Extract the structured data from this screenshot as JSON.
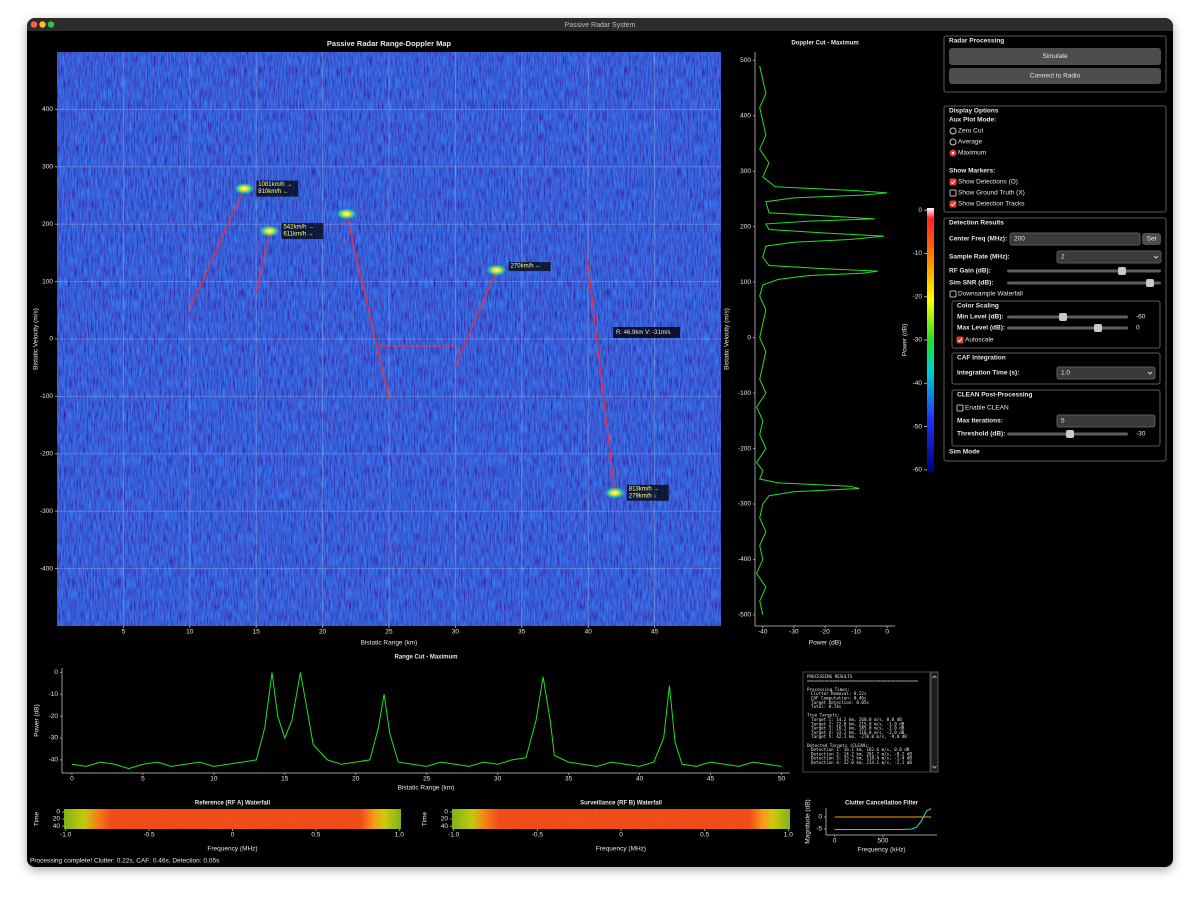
{
  "window": {
    "title": "Passive Radar System"
  },
  "chart_data": [
    {
      "type": "heatmap",
      "title": "Passive Radar Range-Doppler Map",
      "xlabel": "Bistatic Range (km)",
      "ylabel": "Bistatic Velocity (m/s)",
      "xlim": [
        0,
        50
      ],
      "ylim": [
        -500,
        500
      ],
      "xticks": [
        5,
        10,
        15,
        20,
        25,
        30,
        35,
        40,
        45
      ],
      "yticks": [
        -400,
        -300,
        -200,
        -100,
        0,
        100,
        200,
        300,
        400
      ],
      "grid": true,
      "colormap": "jet",
      "targets": {
        "range": [
          14.1,
          16.0,
          21.8,
          33.1,
          42.0
        ],
        "velocity": [
          262,
          188,
          218,
          120,
          -268
        ],
        "labels": [
          [
            "1081km/h →",
            "810km/h ←"
          ],
          [
            "542km/h →",
            "611km/h →"
          ],
          null,
          [
            "270km/h ←"
          ],
          [
            "813km/h →",
            "279km/h ↓"
          ]
        ]
      },
      "tracks": {
        "color": "#ff2a2a",
        "lines": [
          {
            "range": [
              10.0,
              14.1
            ],
            "velocity": [
              52,
              262
            ]
          },
          {
            "range": [
              15.0,
              16.0
            ],
            "velocity": [
              80,
              188
            ]
          },
          {
            "range": [
              21.8,
              25.0
            ],
            "velocity": [
              218,
              -104
            ]
          },
          {
            "range": [
              30.0,
              33.1
            ],
            "velocity": [
              -48,
              120
            ]
          },
          {
            "range": [
              39.9,
              42.0
            ],
            "velocity": [
              148,
              -268
            ]
          },
          {
            "range": [
              24.1,
              30.3
            ],
            "velocity": [
              -12,
              -12
            ]
          }
        ]
      },
      "cursor_readout": "R: 46.9km  V: -31m/s",
      "colorbar": {
        "label": "Power (dB)",
        "lim": [
          -60.5,
          0.5
        ],
        "ticks": [
          0,
          -10,
          -20,
          -30,
          -40,
          -50,
          -60
        ]
      }
    },
    {
      "type": "line",
      "orientation": "horizontal",
      "title": "Doppler Cut - Maximum",
      "xlabel": "Power (dB)",
      "ylabel": "Bistatic Velocity (m/s)",
      "xlim": [
        -42.5,
        2.5
      ],
      "ylim": [
        -520,
        515
      ],
      "xticks": [
        -40,
        -30,
        -20,
        -10,
        0
      ],
      "yticks": [
        -500,
        -400,
        -300,
        -200,
        -100,
        0,
        100,
        200,
        300,
        400,
        500
      ],
      "color": "#22e022",
      "y": [
        -500,
        -475,
        -450,
        -425,
        -400,
        -375,
        -350,
        -325,
        -300,
        -285,
        -278,
        -272,
        -268,
        -262,
        -255,
        -240,
        -225,
        -200,
        -175,
        -150,
        -125,
        -100,
        -75,
        -50,
        -25,
        0,
        25,
        50,
        75,
        95,
        105,
        112,
        116,
        120,
        124,
        130,
        145,
        165,
        172,
        177,
        183,
        188,
        195,
        205,
        210,
        214,
        218,
        225,
        245,
        252,
        257,
        261,
        265,
        272,
        290,
        315,
        340,
        365,
        390,
        415,
        440,
        465,
        490
      ],
      "values": [
        -40,
        -41,
        -39,
        -42,
        -40,
        -41,
        -39,
        -41,
        -40,
        -38,
        -30,
        -9,
        -12,
        -35,
        -41,
        -40,
        -42,
        -39,
        -41,
        -40,
        -42,
        -39,
        -41,
        -40,
        -39,
        -41,
        -40,
        -39,
        -41,
        -40,
        -35,
        -25,
        -8,
        -3,
        -20,
        -38,
        -40,
        -39,
        -30,
        -12,
        -1,
        -18,
        -38,
        -39,
        -25,
        -4,
        -15,
        -38,
        -39,
        -30,
        -8,
        0,
        -10,
        -36,
        -40,
        -38,
        -41,
        -39,
        -40,
        -41,
        -39,
        -40,
        -41
      ]
    },
    {
      "type": "line",
      "title": "Range Cut - Maximum",
      "xlabel": "Bistatic Range (km)",
      "ylabel": "Power (dB)",
      "xlim": [
        -0.7,
        50.6
      ],
      "ylim": [
        -46,
        2
      ],
      "xticks": [
        0,
        5,
        10,
        15,
        20,
        25,
        30,
        35,
        40,
        45,
        50
      ],
      "yticks": [
        0,
        -10,
        -20,
        -30,
        -40
      ],
      "color": "#22e022",
      "x": [
        0,
        1,
        2,
        3,
        4,
        5,
        6,
        7,
        8,
        9,
        10,
        11,
        12,
        13,
        13.6,
        14.1,
        14.5,
        15,
        15.5,
        16.1,
        16.6,
        17,
        18,
        19,
        20,
        21,
        21.6,
        22,
        22.4,
        23,
        24,
        25,
        26,
        27,
        28,
        29,
        30,
        31,
        32,
        32.7,
        33.2,
        33.7,
        34,
        35,
        36,
        37,
        38,
        39,
        40,
        41,
        41.7,
        42.1,
        42.5,
        43,
        44,
        45,
        46,
        47,
        48,
        49,
        50
      ],
      "values": [
        -42,
        -43,
        -41,
        -42,
        -44,
        -42,
        -41,
        -43,
        -42,
        -41,
        -43,
        -42,
        -41,
        -40,
        -25,
        0,
        -20,
        -30,
        -22,
        0,
        -18,
        -33,
        -40,
        -42,
        -41,
        -40,
        -25,
        -10,
        -28,
        -41,
        -42,
        -43,
        -41,
        -42,
        -43,
        -41,
        -42,
        -40,
        -39,
        -22,
        -2,
        -22,
        -38,
        -41,
        -42,
        -43,
        -41,
        -42,
        -43,
        -41,
        -30,
        -6,
        -32,
        -42,
        -43,
        -41,
        -42,
        -43,
        -41,
        -42,
        -43
      ]
    },
    {
      "type": "heatmap",
      "title": "Reference (RF A) Waterfall",
      "xlabel": "Frequency (MHz)",
      "ylabel": "Time",
      "xlim": [
        -1.01,
        1.01
      ],
      "ylim": [
        48,
        -8
      ],
      "xticks": [
        {
          "value": -1,
          "label": "-1.0"
        },
        -0.5,
        0,
        0.5,
        {
          "value": 1,
          "label": "1.0"
        }
      ],
      "yticks": [
        0,
        20,
        40
      ],
      "colormap": "jet"
    },
    {
      "type": "heatmap",
      "title": "Surveillance (RF B) Waterfall",
      "xlabel": "Frequency (MHz)",
      "ylabel": "Time",
      "xlim": [
        -1.01,
        1.01
      ],
      "ylim": [
        48,
        -8
      ],
      "xticks": [
        {
          "value": -1,
          "label": "-1.0"
        },
        -0.5,
        0,
        0.5,
        {
          "value": 1,
          "label": "1.0"
        }
      ],
      "yticks": [
        0,
        20,
        40
      ],
      "colormap": "jet"
    },
    {
      "type": "line",
      "title": "Clutter Cancellation Filter",
      "xlabel": "Frequency (kHz)",
      "ylabel": "Magnitude (dB)",
      "xlim": [
        -90,
        1060
      ],
      "ylim": [
        -7.5,
        3.75
      ],
      "xticks": [
        0,
        500
      ],
      "yticks": [
        0,
        -5
      ],
      "x": [
        0,
        100,
        200,
        300,
        400,
        500,
        600,
        700,
        800,
        850,
        900,
        950,
        1000
      ],
      "series": [
        {
          "color": "#ff9a1a",
          "values": [
            0,
            0,
            0,
            0,
            0,
            0,
            0,
            0,
            0,
            0,
            0,
            0,
            0
          ]
        },
        {
          "color": "#19d8f0",
          "values": [
            -5.2,
            -5.2,
            -5.2,
            -5.2,
            -5.2,
            -5.2,
            -5.2,
            -5.2,
            -5.0,
            -4.2,
            -1.5,
            2.5,
            3.5
          ]
        }
      ]
    }
  ],
  "results": {
    "title": "PROCESSING RESULTS",
    "rule": "============================================",
    "sections": [
      {
        "heading": "Processing Times:",
        "lines": [
          "Clutter Removal: 0.22s",
          "CAF Computation: 0.46s",
          "Target Detection: 0.05s",
          "Total: 0.74s"
        ]
      },
      {
        "heading": "True Targets:",
        "lines": [
          "Target 1: 14.2 km, 260.0 m/s, 0.0 dB",
          "Target 2: 22.0 km, 215.0 m/s, -1.0 dB",
          "Target 3: 16.1 km, 185.0 m/s, -1.0 dB",
          "Target 4: 33.1 km, 118.0 m/s, -2.0 dB",
          "Target 5: 42.1 km, -270.0 m/s, -9.0 dB"
        ]
      },
      {
        "heading": "Detected Targets (CLEAN):",
        "lines": [
          "Detection 1: 16.1 km, 182.6 m/s, 0.0 dB",
          "Detection 2: 14.2 km, 261.7 m/s, -0.2 dB",
          "Detection 3: 33.2 km, 118.4 m/s, -1.4 dB",
          "Detection 4: 22.0 km, 214.1 m/s, -2.1 dB"
        ]
      }
    ]
  },
  "panel": {
    "radar_processing": {
      "title": "Radar Processing",
      "buttons": [
        "Simulate",
        "Connect to Radio"
      ]
    },
    "display_options": {
      "title": "Display Options",
      "aux_label": "Aux Plot Mode:",
      "modes": [
        "Zero Cut",
        "Average",
        "Maximum"
      ],
      "selected_mode": 2,
      "markers_label": "Show Markers:",
      "markers": [
        {
          "label": "Show Detections (O)",
          "checked": true
        },
        {
          "label": "Show Ground Truth (X)",
          "checked": false
        },
        {
          "label": "Show Detection Tracks",
          "checked": true
        }
      ]
    },
    "detection_results": {
      "title": "Detection Results",
      "center_freq": {
        "label": "Center Freq (MHz):",
        "value": 200,
        "button": "Set"
      },
      "sample_rate": {
        "label": "Sample Rate (MHz):",
        "value": 2
      },
      "rf_gain": {
        "label": "RF Gain (dB):"
      },
      "sim_snr": {
        "label": "Sim SNR (dB):"
      },
      "downsample": {
        "label": "Downsample Waterfall",
        "checked": false
      },
      "color_scaling": {
        "title": "Color Scaling",
        "min": {
          "label": "Min Level (dB):",
          "value": -60
        },
        "max": {
          "label": "Max Level (dB):",
          "value": 0
        },
        "autoscale": {
          "label": "Autoscale",
          "checked": true
        }
      },
      "caf": {
        "title": "CAF Integration",
        "integration": {
          "label": "Integration Time (s):",
          "value": "1.0"
        }
      },
      "clean": {
        "title": "CLEAN Post-Processing",
        "enable": {
          "label": "Enable CLEAN",
          "checked": false
        },
        "iterations": {
          "label": "Max Iterations:",
          "value": 5
        },
        "threshold": {
          "label": "Threshold (dB):",
          "value": -30
        }
      },
      "sim_mode": "Sim Mode"
    }
  },
  "status": "Processing complete! Clutter: 0.22s, CAF: 0.46s, Detection: 0.05s"
}
